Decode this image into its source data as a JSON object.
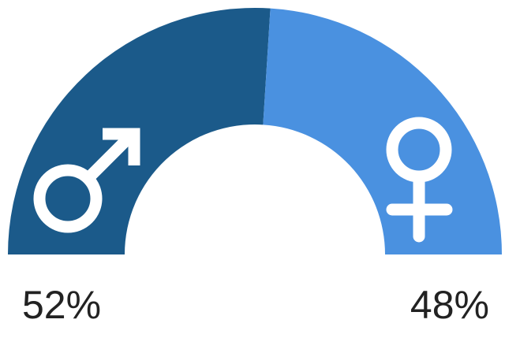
{
  "chart_data": {
    "type": "pie",
    "style": "half-donut",
    "values": [
      52,
      48
    ],
    "value_labels": [
      "52%",
      "48%"
    ],
    "colors": [
      "#1b5a8a",
      "#4a91e0"
    ]
  }
}
